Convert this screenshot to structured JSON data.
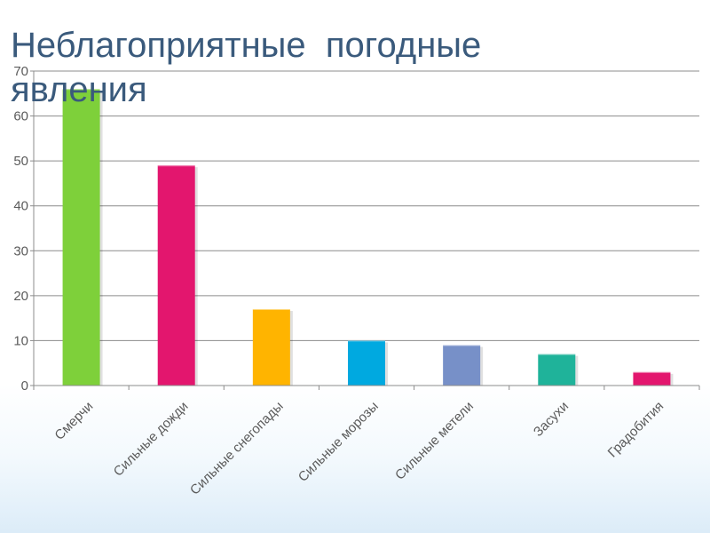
{
  "slide": {
    "title": "Неблагоприятные  погодные явления"
  },
  "chart_data": {
    "type": "bar",
    "categories": [
      "Смерчи",
      "Сильные дожди",
      "Сильные снегопады",
      "Сильные морозы",
      "Сильные метели",
      "Засухи",
      "Градобития"
    ],
    "values": [
      66,
      49,
      17,
      10,
      9,
      7,
      3
    ],
    "colors": [
      "#7ed03a",
      "#e3166e",
      "#ffb400",
      "#00a9e0",
      "#7790c8",
      "#1fb39a",
      "#e3166e"
    ],
    "ylim": [
      0,
      70
    ],
    "yticks": [
      0,
      10,
      20,
      30,
      40,
      50,
      60,
      70
    ],
    "grid": true,
    "legend": "none"
  }
}
